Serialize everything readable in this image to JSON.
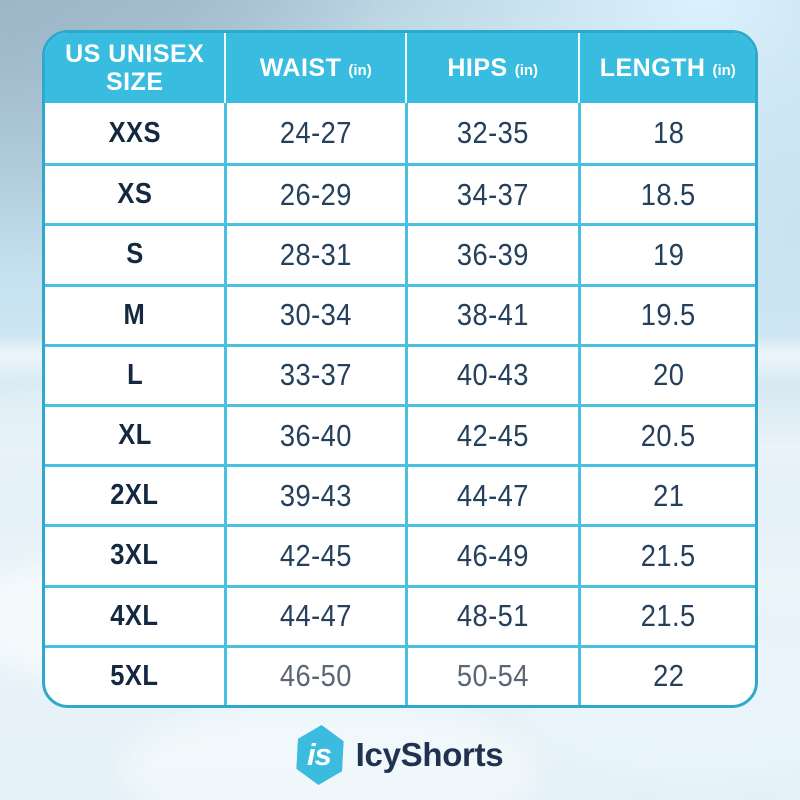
{
  "chart_data": {
    "type": "table",
    "columns": [
      "US UNISEX SIZE",
      "WAIST (in)",
      "HIPS (in)",
      "LENGTH (in)"
    ],
    "rows": [
      [
        "XXS",
        "24-27",
        "32-35",
        "18"
      ],
      [
        "XS",
        "26-29",
        "34-37",
        "18.5"
      ],
      [
        "S",
        "28-31",
        "36-39",
        "19"
      ],
      [
        "M",
        "30-34",
        "38-41",
        "19.5"
      ],
      [
        "L",
        "33-37",
        "40-43",
        "20"
      ],
      [
        "XL",
        "36-40",
        "42-45",
        "20.5"
      ],
      [
        "2XL",
        "39-43",
        "44-47",
        "21"
      ],
      [
        "3XL",
        "42-45",
        "46-49",
        "21.5"
      ],
      [
        "4XL",
        "44-47",
        "48-51",
        "21.5"
      ],
      [
        "5XL",
        "46-50",
        "50-54",
        "22"
      ]
    ]
  },
  "table": {
    "headers": [
      {
        "label": "US UNISEX SIZE",
        "unit": ""
      },
      {
        "label": "WAIST",
        "unit": "(in)"
      },
      {
        "label": "HIPS",
        "unit": "(in)"
      },
      {
        "label": "LENGTH",
        "unit": "(in)"
      }
    ],
    "rows": [
      {
        "size": "XXS",
        "waist": "24-27",
        "hips": "32-35",
        "length": "18"
      },
      {
        "size": "XS",
        "waist": "26-29",
        "hips": "34-37",
        "length": "18.5"
      },
      {
        "size": "S",
        "waist": "28-31",
        "hips": "36-39",
        "length": "19"
      },
      {
        "size": "M",
        "waist": "30-34",
        "hips": "38-41",
        "length": "19.5"
      },
      {
        "size": "L",
        "waist": "33-37",
        "hips": "40-43",
        "length": "20"
      },
      {
        "size": "XL",
        "waist": "36-40",
        "hips": "42-45",
        "length": "20.5"
      },
      {
        "size": "2XL",
        "waist": "39-43",
        "hips": "44-47",
        "length": "21"
      },
      {
        "size": "3XL",
        "waist": "42-45",
        "hips": "46-49",
        "length": "21.5"
      },
      {
        "size": "4XL",
        "waist": "44-47",
        "hips": "48-51",
        "length": "21.5"
      },
      {
        "size": "5XL",
        "waist": "46-50",
        "hips": "50-54",
        "length": "22"
      }
    ]
  },
  "brand": {
    "monogram": "is",
    "name": "IcyShorts"
  },
  "colors": {
    "header_teal": "#38BCDF",
    "grid_teal": "#49C0E3",
    "border_teal": "#2EA9CC",
    "number_navy": "#25405C",
    "size_navy": "#14293F",
    "muted_gray": "#5B6774",
    "logo_navy": "#20324F",
    "logo_hex_teal": "#3BBCDE"
  }
}
